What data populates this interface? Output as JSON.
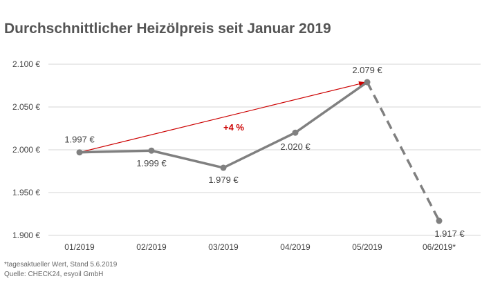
{
  "chart_data": {
    "type": "line",
    "title": "Durchschnittlicher Heizölpreis seit Januar 2019",
    "categories": [
      "01/2019",
      "02/2019",
      "03/2019",
      "04/2019",
      "05/2019",
      "06/2019*"
    ],
    "series": [
      {
        "values": [
          1997,
          1999,
          1979,
          2020,
          2079,
          1917
        ]
      }
    ],
    "data_labels": [
      "1.997 €",
      "1.999 €",
      "1.979 €",
      "2.020 €",
      "2.079 €",
      "1.917 €"
    ],
    "y_ticks": [
      1900,
      1950,
      2000,
      2050,
      2100
    ],
    "y_tick_labels": [
      "1.900 €",
      "1.950 €",
      "2.000 €",
      "2.050 €",
      "2.100 €"
    ],
    "ylim": [
      1900,
      2100
    ],
    "grid": true,
    "trend_annotation": {
      "from_category": "01/2019",
      "to_category": "05/2019",
      "label": "+4 %",
      "color": "#cc0000"
    },
    "dashed_segment": {
      "from_category": "05/2019",
      "to_category": "06/2019*"
    },
    "line_color": "#808080"
  },
  "footnotes": {
    "note": "*tagesaktueller Wert, Stand 5.6.2019",
    "source": "Quelle: CHECK24, esyoil GmbH"
  }
}
